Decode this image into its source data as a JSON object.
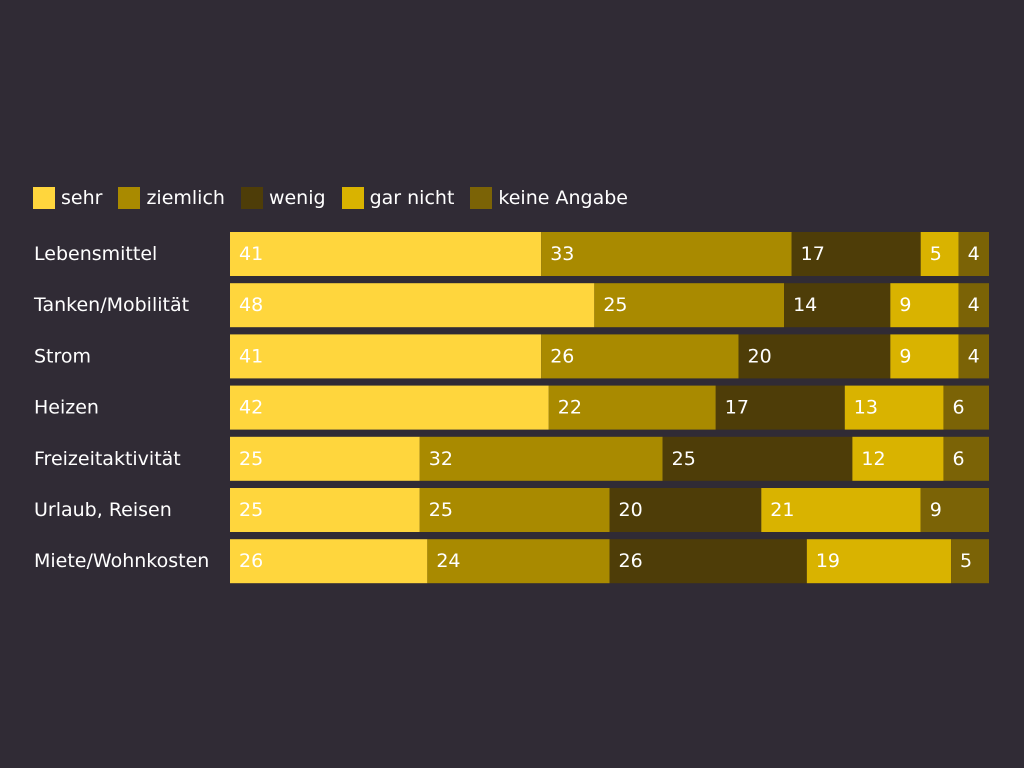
{
  "chart_data": {
    "type": "bar",
    "orientation": "horizontal",
    "stacked": true,
    "categories": [
      "Lebensmittel",
      "Tanken/Mobilität",
      "Strom",
      "Heizen",
      "Freizeitaktivität",
      "Urlaub, Reisen",
      "Miete/Wohnkosten"
    ],
    "series": [
      {
        "name": "sehr",
        "color": "#ffd63d",
        "values": [
          41,
          48,
          41,
          42,
          25,
          25,
          26
        ]
      },
      {
        "name": "ziemlich",
        "color": "#a98a00",
        "values": [
          33,
          25,
          26,
          22,
          32,
          25,
          24
        ]
      },
      {
        "name": "wenig",
        "color": "#4e3d08",
        "values": [
          17,
          14,
          20,
          17,
          25,
          20,
          26
        ]
      },
      {
        "name": "gar nicht",
        "color": "#d9b300",
        "values": [
          5,
          9,
          9,
          13,
          12,
          21,
          19
        ]
      },
      {
        "name": "keine Angabe",
        "color": "#7b6306",
        "values": [
          4,
          4,
          4,
          6,
          6,
          9,
          5
        ]
      }
    ],
    "legend_position": "top-left",
    "grid": false,
    "data_labels": true,
    "label_color": "#ffffff"
  }
}
